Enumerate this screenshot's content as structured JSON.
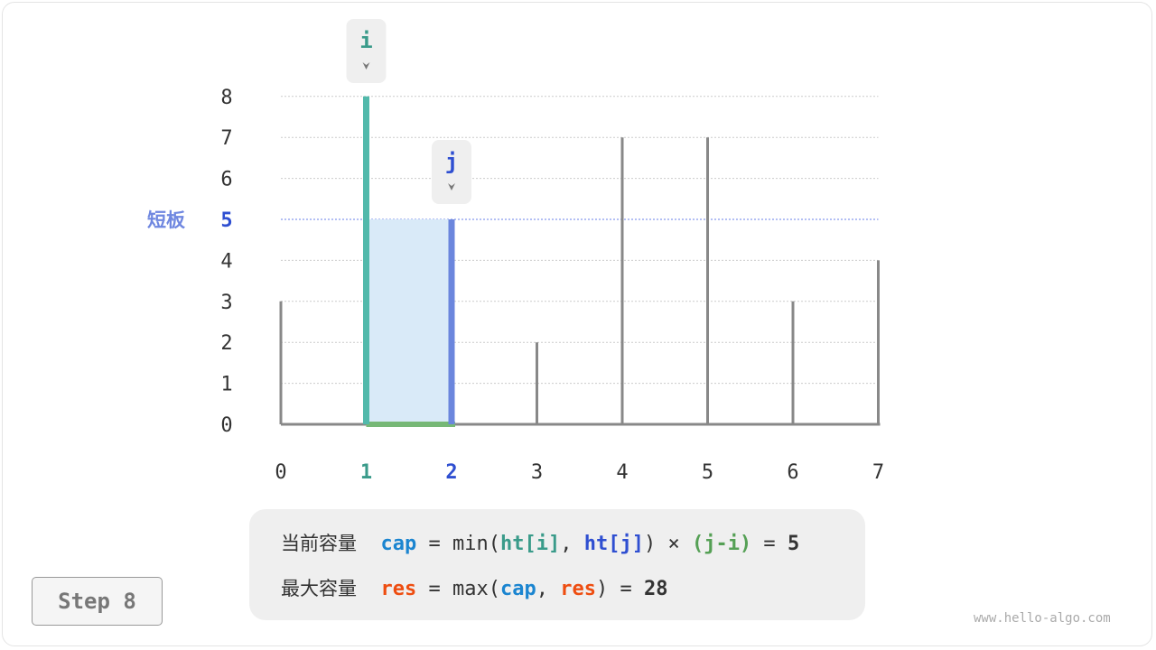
{
  "chart_data": {
    "type": "bar",
    "categories": [
      "0",
      "1",
      "2",
      "3",
      "4",
      "5",
      "6",
      "7"
    ],
    "values": [
      3,
      8,
      5,
      2,
      7,
      7,
      3,
      4
    ],
    "y_ticks": [
      "0",
      "1",
      "2",
      "3",
      "4",
      "5",
      "6",
      "7",
      "8"
    ],
    "ylim": [
      0,
      8
    ],
    "grid": true,
    "pointer_i": {
      "label": "i",
      "index": 1,
      "color": "#3a9b8a"
    },
    "pointer_j": {
      "label": "j",
      "index": 2,
      "color": "#2f4fd1"
    },
    "short_board": {
      "label": "短板",
      "value": 5,
      "color": "#6f87e0"
    },
    "colors": {
      "bar": "#888888",
      "i_bar": "#52b9ab",
      "j_bar": "#6b86dd",
      "area": "#d9eaf8",
      "width": "#76b876"
    }
  },
  "formula": {
    "line1": {
      "label": "当前容量",
      "var": "cap",
      "eq": " = ",
      "fn": "min(",
      "a": "ht[i]",
      "comma": ", ",
      "b": "ht[j]",
      "close": ")",
      "times": " × ",
      "c": "(j-i)",
      "eq2": " = ",
      "result": "5"
    },
    "line2": {
      "label": "最大容量",
      "var": "res",
      "eq": " = ",
      "fn": "max(",
      "a": "cap",
      "comma": ", ",
      "b": "res",
      "close": ")",
      "eq2": " = ",
      "result": "28"
    }
  },
  "step": "Step 8",
  "watermark": "www.hello-algo.com"
}
